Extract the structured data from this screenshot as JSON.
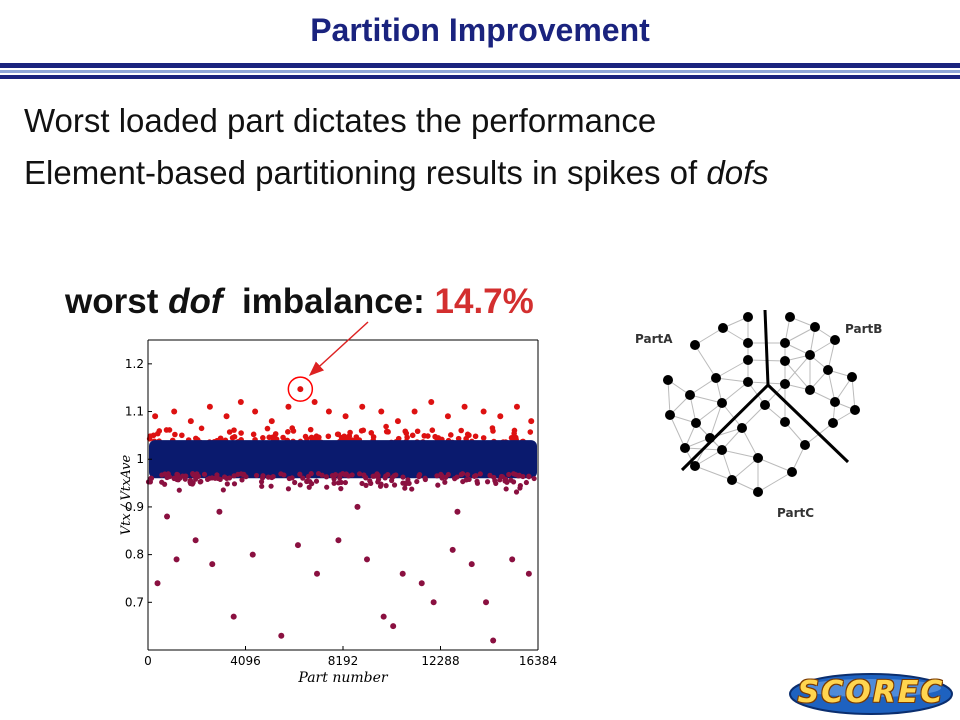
{
  "slide": {
    "title": "Partition Improvement",
    "bullets": [
      {
        "text": "Worst loaded part dictates the performance",
        "emph": ""
      },
      {
        "text": "Element-based partitioning results in spikes of ",
        "emph": "dofs"
      }
    ],
    "callout": {
      "pre": "worst ",
      "emph": "dof",
      "mid": "  imbalance: ",
      "value": "14.7%"
    },
    "logo_text": "SCOREC",
    "colors": {
      "title": "#1a237e",
      "highlight": "#d32f2f",
      "rule_dark": "#1a237e",
      "rule_light": "#8fa6d8"
    }
  },
  "chart_data": [
    {
      "type": "scatter",
      "xlabel": "Part number",
      "ylabel": "Vtx / VtxAve",
      "xlim": [
        0,
        16384
      ],
      "ylim": [
        0.6,
        1.25
      ],
      "xticks": [
        0,
        4096,
        8192,
        12288,
        16384
      ],
      "xtick_labels": [
        "0",
        "4096",
        "8192",
        "12288",
        "16384"
      ],
      "yticks": [
        0.7,
        0.8,
        0.9,
        1,
        1.1,
        1.2
      ],
      "ytick_labels": [
        "0.7",
        "0.8",
        "0.9",
        "1",
        "1.1",
        "1.2"
      ],
      "grid": false,
      "colors": {
        "upper": "#dd1111",
        "band": "#0a1a6e",
        "lower": "#8a1040",
        "marker_circle": "#ff0000",
        "arrow": "#dd2222"
      },
      "band": {
        "ymin": 0.96,
        "ymax": 1.04
      },
      "max_point": {
        "x": 6400,
        "y": 1.147
      },
      "upper_points": [
        {
          "x": 300,
          "y": 1.09
        },
        {
          "x": 1100,
          "y": 1.1
        },
        {
          "x": 1800,
          "y": 1.08
        },
        {
          "x": 2600,
          "y": 1.11
        },
        {
          "x": 3300,
          "y": 1.09
        },
        {
          "x": 3900,
          "y": 1.12
        },
        {
          "x": 4500,
          "y": 1.1
        },
        {
          "x": 5200,
          "y": 1.08
        },
        {
          "x": 5900,
          "y": 1.11
        },
        {
          "x": 7000,
          "y": 1.12
        },
        {
          "x": 7600,
          "y": 1.1
        },
        {
          "x": 8300,
          "y": 1.09
        },
        {
          "x": 9000,
          "y": 1.11
        },
        {
          "x": 9800,
          "y": 1.1
        },
        {
          "x": 10500,
          "y": 1.08
        },
        {
          "x": 11200,
          "y": 1.1
        },
        {
          "x": 11900,
          "y": 1.12
        },
        {
          "x": 12600,
          "y": 1.09
        },
        {
          "x": 13300,
          "y": 1.11
        },
        {
          "x": 14100,
          "y": 1.1
        },
        {
          "x": 14800,
          "y": 1.09
        },
        {
          "x": 15500,
          "y": 1.11
        },
        {
          "x": 16100,
          "y": 1.08
        }
      ],
      "lower_points": [
        {
          "x": 400,
          "y": 0.74
        },
        {
          "x": 1200,
          "y": 0.79
        },
        {
          "x": 2000,
          "y": 0.83
        },
        {
          "x": 2700,
          "y": 0.78
        },
        {
          "x": 3600,
          "y": 0.67
        },
        {
          "x": 4400,
          "y": 0.8
        },
        {
          "x": 5600,
          "y": 0.63
        },
        {
          "x": 6300,
          "y": 0.82
        },
        {
          "x": 7100,
          "y": 0.76
        },
        {
          "x": 8000,
          "y": 0.83
        },
        {
          "x": 9200,
          "y": 0.79
        },
        {
          "x": 9900,
          "y": 0.67
        },
        {
          "x": 10300,
          "y": 0.65
        },
        {
          "x": 10700,
          "y": 0.76
        },
        {
          "x": 11500,
          "y": 0.74
        },
        {
          "x": 12000,
          "y": 0.7
        },
        {
          "x": 12800,
          "y": 0.81
        },
        {
          "x": 13600,
          "y": 0.78
        },
        {
          "x": 14200,
          "y": 0.7
        },
        {
          "x": 14500,
          "y": 0.62
        },
        {
          "x": 15300,
          "y": 0.79
        },
        {
          "x": 16000,
          "y": 0.76
        },
        {
          "x": 800,
          "y": 0.88
        },
        {
          "x": 3000,
          "y": 0.89
        },
        {
          "x": 8800,
          "y": 0.9
        },
        {
          "x": 13000,
          "y": 0.89
        }
      ]
    }
  ],
  "diagram": {
    "labels": {
      "a": "PartA",
      "b": "PartB",
      "c": "PartC"
    },
    "colors": {
      "node": "#000000",
      "edge": "#bbbbbb",
      "boundary": "#000000"
    }
  }
}
